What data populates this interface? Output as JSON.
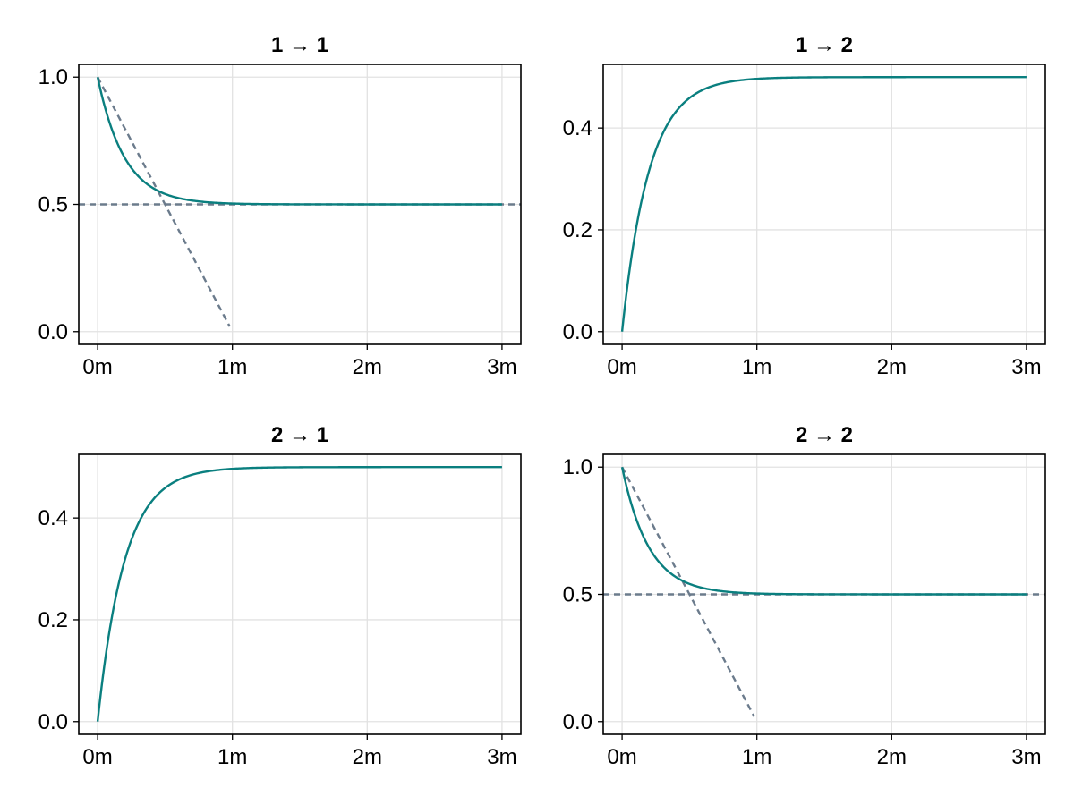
{
  "colors": {
    "curve": "#0a7f7f",
    "reference": "#6b7b8c",
    "grid": "#e2e2e2"
  },
  "chart_data": [
    {
      "type": "line",
      "title": "1 → 1",
      "xlabel": "",
      "ylabel": "",
      "x_ticks": [
        0,
        1,
        2,
        3
      ],
      "x_tick_labels": [
        "0m",
        "1m",
        "2m",
        "3m"
      ],
      "y_ticks": [
        0.0,
        0.5,
        1.0
      ],
      "y_tick_labels": [
        "0.0",
        "0.5",
        "1.0"
      ],
      "xlim": [
        -0.14,
        3.14
      ],
      "ylim": [
        -0.05,
        1.05
      ],
      "grid": true,
      "series": [
        {
          "kind": "curve",
          "function": "0.5 + 0.5*exp(-5t)",
          "x_range": [
            0,
            3
          ],
          "x": [
            0,
            0.1,
            0.2,
            0.3,
            0.4,
            0.5,
            0.75,
            1.0,
            1.5,
            2.0,
            2.5,
            3.0
          ],
          "y": [
            1.0,
            0.803,
            0.684,
            0.612,
            0.568,
            0.541,
            0.512,
            0.503,
            0.5003,
            0.5,
            0.5,
            0.5
          ]
        }
      ],
      "reference_lines": [
        {
          "kind": "hline",
          "y": 0.5
        },
        {
          "kind": "segment",
          "x": [
            0,
            0.98
          ],
          "y": [
            1.0,
            0.02
          ]
        }
      ]
    },
    {
      "type": "line",
      "title": "1 → 2",
      "xlabel": "",
      "ylabel": "",
      "x_ticks": [
        0,
        1,
        2,
        3
      ],
      "x_tick_labels": [
        "0m",
        "1m",
        "2m",
        "3m"
      ],
      "y_ticks": [
        0.0,
        0.2,
        0.4
      ],
      "y_tick_labels": [
        "0.0",
        "0.2",
        "0.4"
      ],
      "xlim": [
        -0.14,
        3.14
      ],
      "ylim": [
        -0.025,
        0.525
      ],
      "grid": true,
      "series": [
        {
          "kind": "curve",
          "function": "0.5 - 0.5*exp(-5t)",
          "x_range": [
            0,
            3
          ],
          "x": [
            0,
            0.1,
            0.2,
            0.3,
            0.4,
            0.5,
            0.75,
            1.0,
            1.5,
            2.0,
            2.5,
            3.0
          ],
          "y": [
            0.0,
            0.197,
            0.316,
            0.388,
            0.432,
            0.459,
            0.488,
            0.497,
            0.4997,
            0.5,
            0.5,
            0.5
          ]
        }
      ],
      "reference_lines": []
    },
    {
      "type": "line",
      "title": "2 → 1",
      "xlabel": "",
      "ylabel": "",
      "x_ticks": [
        0,
        1,
        2,
        3
      ],
      "x_tick_labels": [
        "0m",
        "1m",
        "2m",
        "3m"
      ],
      "y_ticks": [
        0.0,
        0.2,
        0.4
      ],
      "y_tick_labels": [
        "0.0",
        "0.2",
        "0.4"
      ],
      "xlim": [
        -0.14,
        3.14
      ],
      "ylim": [
        -0.025,
        0.525
      ],
      "grid": true,
      "series": [
        {
          "kind": "curve",
          "function": "0.5 - 0.5*exp(-5t)",
          "x_range": [
            0,
            3
          ],
          "x": [
            0,
            0.1,
            0.2,
            0.3,
            0.4,
            0.5,
            0.75,
            1.0,
            1.5,
            2.0,
            2.5,
            3.0
          ],
          "y": [
            0.0,
            0.197,
            0.316,
            0.388,
            0.432,
            0.459,
            0.488,
            0.497,
            0.4997,
            0.5,
            0.5,
            0.5
          ]
        }
      ],
      "reference_lines": []
    },
    {
      "type": "line",
      "title": "2 → 2",
      "xlabel": "",
      "ylabel": "",
      "x_ticks": [
        0,
        1,
        2,
        3
      ],
      "x_tick_labels": [
        "0m",
        "1m",
        "2m",
        "3m"
      ],
      "y_ticks": [
        0.0,
        0.5,
        1.0
      ],
      "y_tick_labels": [
        "0.0",
        "0.5",
        "1.0"
      ],
      "xlim": [
        -0.14,
        3.14
      ],
      "ylim": [
        -0.05,
        1.05
      ],
      "grid": true,
      "series": [
        {
          "kind": "curve",
          "function": "0.5 + 0.5*exp(-5t)",
          "x_range": [
            0,
            3
          ],
          "x": [
            0,
            0.1,
            0.2,
            0.3,
            0.4,
            0.5,
            0.75,
            1.0,
            1.5,
            2.0,
            2.5,
            3.0
          ],
          "y": [
            1.0,
            0.803,
            0.684,
            0.612,
            0.568,
            0.541,
            0.512,
            0.503,
            0.5003,
            0.5,
            0.5,
            0.5
          ]
        }
      ],
      "reference_lines": [
        {
          "kind": "hline",
          "y": 0.5
        },
        {
          "kind": "segment",
          "x": [
            0,
            0.98
          ],
          "y": [
            1.0,
            0.02
          ]
        }
      ]
    }
  ]
}
